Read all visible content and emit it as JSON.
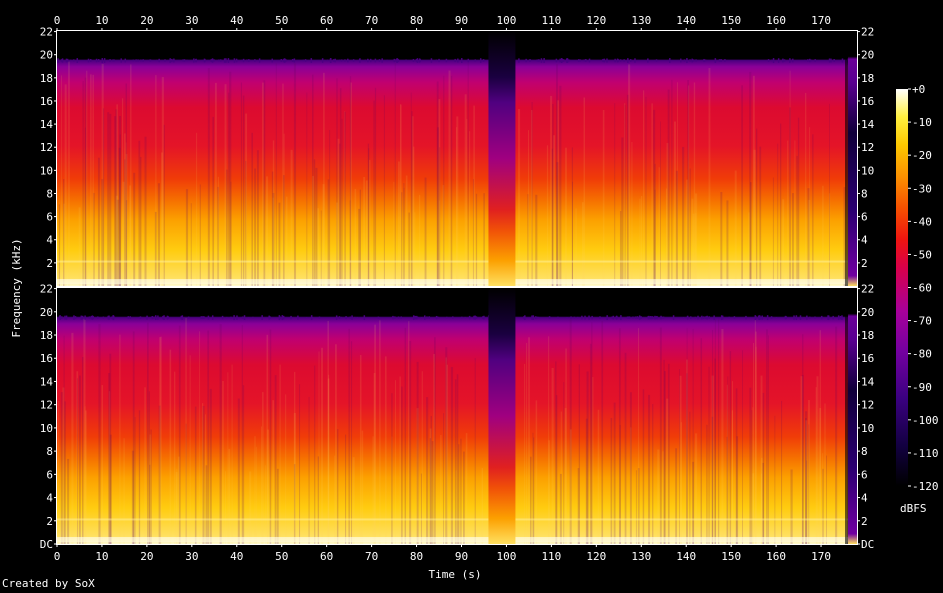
{
  "credit": "Created by SoX",
  "chart_data": {
    "type": "heatmap",
    "xlabel": "Time (s)",
    "ylabel": "Frequency (kHz)",
    "colorbar_label": "dBFS",
    "x_ticks": [
      0,
      10,
      20,
      30,
      40,
      50,
      60,
      70,
      80,
      90,
      100,
      110,
      120,
      130,
      140,
      150,
      160,
      170
    ],
    "xlim": [
      0,
      178
    ],
    "ylim": [
      0,
      22.05
    ],
    "channels": [
      {
        "y_ticks": [
          "22",
          "20",
          "18",
          "16",
          "14",
          "12",
          "10",
          "8",
          "6",
          "4",
          "2"
        ],
        "y_tick_values": [
          22,
          20,
          18,
          16,
          14,
          12,
          10,
          8,
          6,
          4,
          2
        ]
      },
      {
        "y_ticks": [
          "22",
          "20",
          "18",
          "16",
          "14",
          "12",
          "10",
          "8",
          "6",
          "4",
          "2",
          "DC"
        ],
        "y_tick_values": [
          22,
          20,
          18,
          16,
          14,
          12,
          10,
          8,
          6,
          4,
          2,
          0
        ]
      }
    ],
    "colorbar_ticks": [
      "+0",
      "-10",
      "-20",
      "-30",
      "-40",
      "-50",
      "-60",
      "-70",
      "-80",
      "-90",
      "-100",
      "-110",
      "-120"
    ],
    "colorbar_values": [
      0,
      -10,
      -20,
      -30,
      -40,
      -50,
      -60,
      -70,
      -80,
      -90,
      -100,
      -110,
      -120
    ],
    "colormap": [
      "#000000",
      "#1a0036",
      "#3a0080",
      "#7000a0",
      "#a0009a",
      "#d4004a",
      "#ec1010",
      "#f44400",
      "#fa8c00",
      "#fdc800",
      "#ffef40",
      "#ffffff"
    ],
    "lowpass_cutoff_khz": 19.5,
    "gap_start_s": 96,
    "gap_end_s": 102,
    "end_fade_s": 176
  }
}
